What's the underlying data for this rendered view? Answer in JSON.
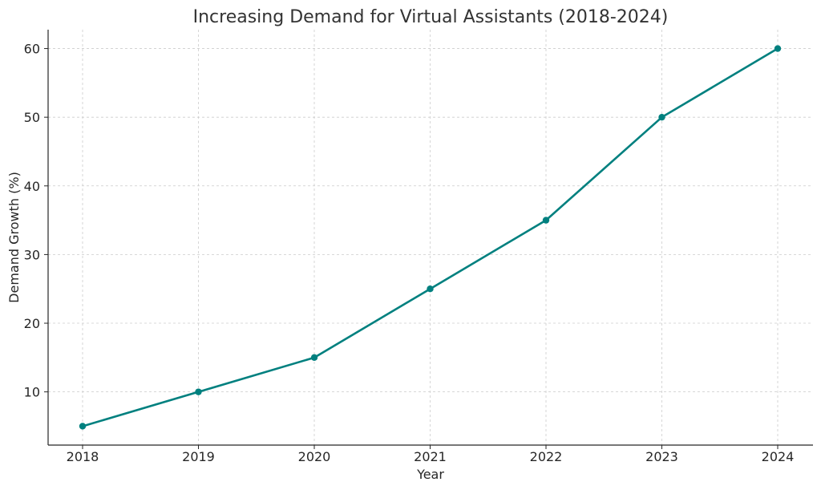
{
  "chart_data": {
    "type": "line",
    "title": "Increasing Demand for Virtual Assistants (2018-2024)",
    "xlabel": "Year",
    "ylabel": "Demand Growth (%)",
    "categories": [
      "2018",
      "2019",
      "2020",
      "2021",
      "2022",
      "2023",
      "2024"
    ],
    "y_ticks": [
      10,
      20,
      30,
      40,
      50,
      60
    ],
    "ylim": [
      2.25,
      62.75
    ],
    "grid": true,
    "series": [
      {
        "values": [
          5,
          10,
          15,
          25,
          35,
          50,
          60
        ],
        "color": "#00807f",
        "marker": "circle"
      }
    ]
  }
}
